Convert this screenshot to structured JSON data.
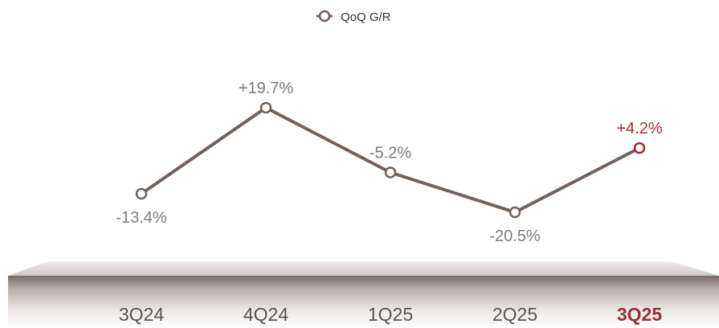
{
  "chart_data": {
    "type": "line",
    "title": "",
    "xlabel": "",
    "ylabel": "",
    "categories": [
      "3Q24",
      "4Q24",
      "1Q25",
      "2Q25",
      "3Q25"
    ],
    "series": [
      {
        "name": "QoQ G/R",
        "values": [
          -13.4,
          19.7,
          -5.2,
          -20.5,
          4.2
        ]
      }
    ],
    "data_labels": [
      "-13.4%",
      "+19.7%",
      "-5.2%",
      "-20.5%",
      "+4.2%"
    ],
    "highlight_index": 4,
    "legend": {
      "label": "QoQ G/R",
      "position": "top-center"
    },
    "ylim": [
      -25,
      25
    ],
    "grid": false,
    "colors": {
      "line": "#70625c",
      "highlight": "#9b2f35",
      "label": "#7a7a7a",
      "axis_label": "#555555",
      "floor": "#c8bebd"
    }
  }
}
